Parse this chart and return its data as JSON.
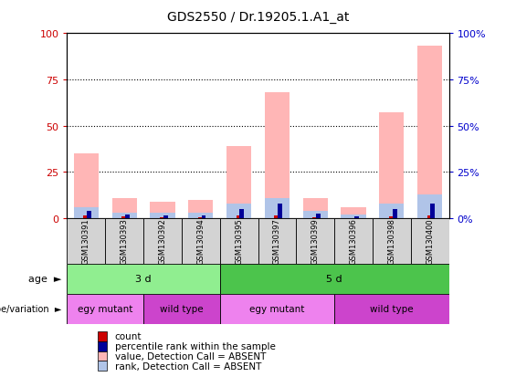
{
  "title": "GDS2550 / Dr.19205.1.A1_at",
  "samples": [
    "GSM130391",
    "GSM130393",
    "GSM130392",
    "GSM130394",
    "GSM130395",
    "GSM130397",
    "GSM130399",
    "GSM130396",
    "GSM130398",
    "GSM130400"
  ],
  "pink_bars": [
    35,
    11,
    9,
    10,
    39,
    68,
    11,
    6,
    57,
    93
  ],
  "light_blue_bars": [
    6,
    3,
    3,
    3,
    8,
    11,
    4,
    2,
    8,
    13
  ],
  "dark_red_bars": [
    1.5,
    0.8,
    0.5,
    0.5,
    1.5,
    1.5,
    0.5,
    0.3,
    0.8,
    1.5
  ],
  "dark_blue_bars": [
    4,
    2,
    1.5,
    1.5,
    5,
    8,
    2.5,
    1.2,
    5,
    8
  ],
  "age_groups": [
    {
      "label": "3 d",
      "start": 0,
      "end": 4,
      "color": "#90EE90"
    },
    {
      "label": "5 d",
      "start": 4,
      "end": 10,
      "color": "#4CC44C"
    }
  ],
  "genotype_groups": [
    {
      "label": "egy mutant",
      "start": 0,
      "end": 2,
      "color": "#EE82EE"
    },
    {
      "label": "wild type",
      "start": 2,
      "end": 4,
      "color": "#CC44CC"
    },
    {
      "label": "egy mutant",
      "start": 4,
      "end": 7,
      "color": "#EE82EE"
    },
    {
      "label": "wild type",
      "start": 7,
      "end": 10,
      "color": "#CC44CC"
    }
  ],
  "ylim": [
    0,
    100
  ],
  "yticks": [
    0,
    25,
    50,
    75,
    100
  ],
  "left_ylabel_color": "#CC0000",
  "right_ylabel_color": "#0000CC",
  "bar_width": 0.65,
  "pink_color": "#FFB6B6",
  "light_blue_color": "#B0C4E8",
  "dark_red_color": "#CC0000",
  "dark_blue_color": "#000099",
  "bg_color": "#FFFFFF",
  "sample_bg_color": "#D3D3D3",
  "legend_items": [
    {
      "label": "count",
      "color": "#CC0000"
    },
    {
      "label": "percentile rank within the sample",
      "color": "#000099"
    },
    {
      "label": "value, Detection Call = ABSENT",
      "color": "#FFB6B6"
    },
    {
      "label": "rank, Detection Call = ABSENT",
      "color": "#B0C4E8"
    }
  ]
}
